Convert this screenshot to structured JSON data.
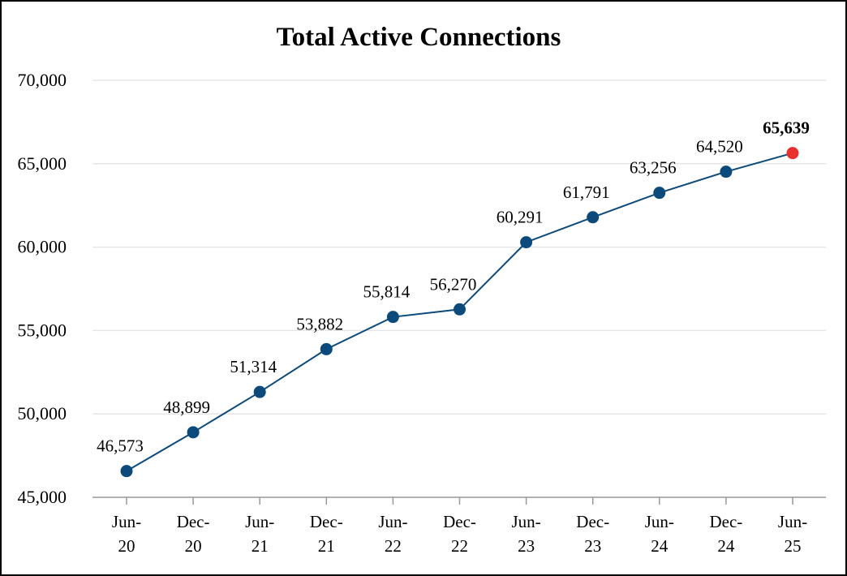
{
  "chart_data": {
    "type": "line",
    "title": "Total Active Connections",
    "xlabel": "",
    "ylabel": "",
    "categories": [
      [
        "Jun-",
        "20"
      ],
      [
        "Dec-",
        "20"
      ],
      [
        "Jun-",
        "21"
      ],
      [
        "Dec-",
        "21"
      ],
      [
        "Jun-",
        "22"
      ],
      [
        "Dec-",
        "22"
      ],
      [
        "Jun-",
        "23"
      ],
      [
        "Dec-",
        "23"
      ],
      [
        "Jun-",
        "24"
      ],
      [
        "Dec-",
        "24"
      ],
      [
        "Jun-",
        "25"
      ]
    ],
    "series": [
      {
        "values": [
          46573,
          48899,
          51314,
          53882,
          55814,
          56270,
          60291,
          61791,
          63256,
          64520,
          65639
        ],
        "labels": [
          "46,573",
          "48,899",
          "51,314",
          "53,882",
          "55,814",
          "56,270",
          "60,291",
          "61,791",
          "63,256",
          "64,520",
          "65,639"
        ]
      }
    ],
    "ylim": [
      45000,
      70000
    ],
    "yticks": [
      45000,
      50000,
      55000,
      60000,
      65000,
      70000
    ],
    "ytick_labels": [
      "45,000",
      "50,000",
      "55,000",
      "60,000",
      "65,000",
      "70,000"
    ],
    "grid": true,
    "legend": false,
    "colors": {
      "line": "#0b4a7a",
      "marker": "#0b4a7a",
      "highlight_marker": "#e8312f",
      "grid": "#e6e6e6",
      "axis": "#999999"
    }
  }
}
